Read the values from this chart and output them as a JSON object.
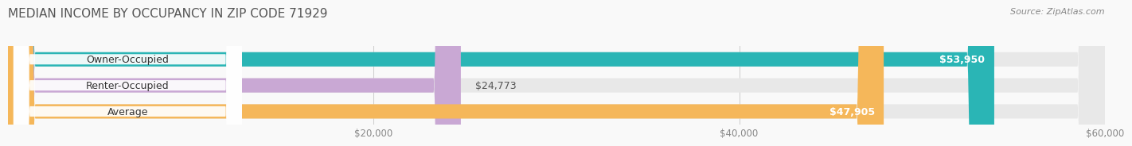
{
  "title": "MEDIAN INCOME BY OCCUPANCY IN ZIP CODE 71929",
  "source": "Source: ZipAtlas.com",
  "categories": [
    "Owner-Occupied",
    "Renter-Occupied",
    "Average"
  ],
  "values": [
    53950,
    24773,
    47905
  ],
  "bar_colors": [
    "#2ab5b5",
    "#c9a8d4",
    "#f5b75a"
  ],
  "bar_bg_color": "#e8e8e8",
  "value_labels": [
    "$53,950",
    "$24,773",
    "$47,905"
  ],
  "xlim": [
    0,
    60000
  ],
  "xticks": [
    20000,
    40000,
    60000
  ],
  "xtick_labels": [
    "$20,000",
    "$40,000",
    "$60,000"
  ],
  "title_fontsize": 11,
  "source_fontsize": 8,
  "label_fontsize": 9,
  "tick_fontsize": 8.5,
  "bar_height": 0.55,
  "background_color": "#f9f9f9"
}
